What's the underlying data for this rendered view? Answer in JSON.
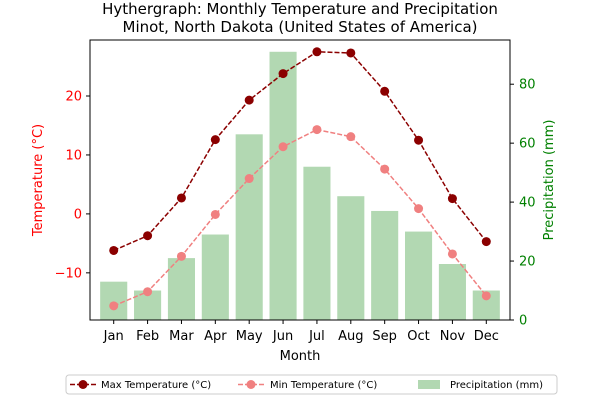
{
  "chart_data": {
    "type": "bar+line",
    "title": "Hythergraph: Monthly Temperature and Precipitation",
    "subtitle": "Minot, North Dakota (United States of America)",
    "xlabel": "Month",
    "ylabel_left": "Temperature (°C)",
    "ylabel_right": "Precipitation (mm)",
    "categories": [
      "Jan",
      "Feb",
      "Mar",
      "Apr",
      "May",
      "Jun",
      "Jul",
      "Aug",
      "Sep",
      "Oct",
      "Nov",
      "Dec"
    ],
    "ylim_left": [
      -18,
      29.5
    ],
    "yticks_left": [
      -10,
      0,
      10,
      20
    ],
    "ylim_right": [
      0,
      95
    ],
    "yticks_right": [
      0,
      20,
      40,
      60,
      80
    ],
    "grid": false,
    "legend_position": "bottom-center",
    "series": [
      {
        "name": "Precipitation (mm)",
        "kind": "bar",
        "axis": "right",
        "color": "#b2d8b2",
        "values": [
          13,
          10,
          21,
          29,
          63,
          91,
          52,
          42,
          37,
          30,
          19,
          10
        ]
      },
      {
        "name": "Max Temperature (°C)",
        "kind": "line",
        "axis": "left",
        "color": "#8b0000",
        "linestyle": "dashed",
        "marker": "circle",
        "values": [
          -6.2,
          -3.7,
          2.7,
          12.6,
          19.3,
          23.8,
          27.5,
          27.3,
          20.8,
          12.5,
          2.6,
          -4.7
        ]
      },
      {
        "name": "Min Temperature (°C)",
        "kind": "line",
        "axis": "left",
        "color": "#f08080",
        "linestyle": "dashed",
        "marker": "circle",
        "values": [
          -15.6,
          -13.2,
          -7.2,
          -0.1,
          6.0,
          11.4,
          14.3,
          13.1,
          7.6,
          0.9,
          -6.8,
          -13.9
        ]
      }
    ],
    "left_axis_color": "#ff0000",
    "right_axis_color": "#008000"
  }
}
